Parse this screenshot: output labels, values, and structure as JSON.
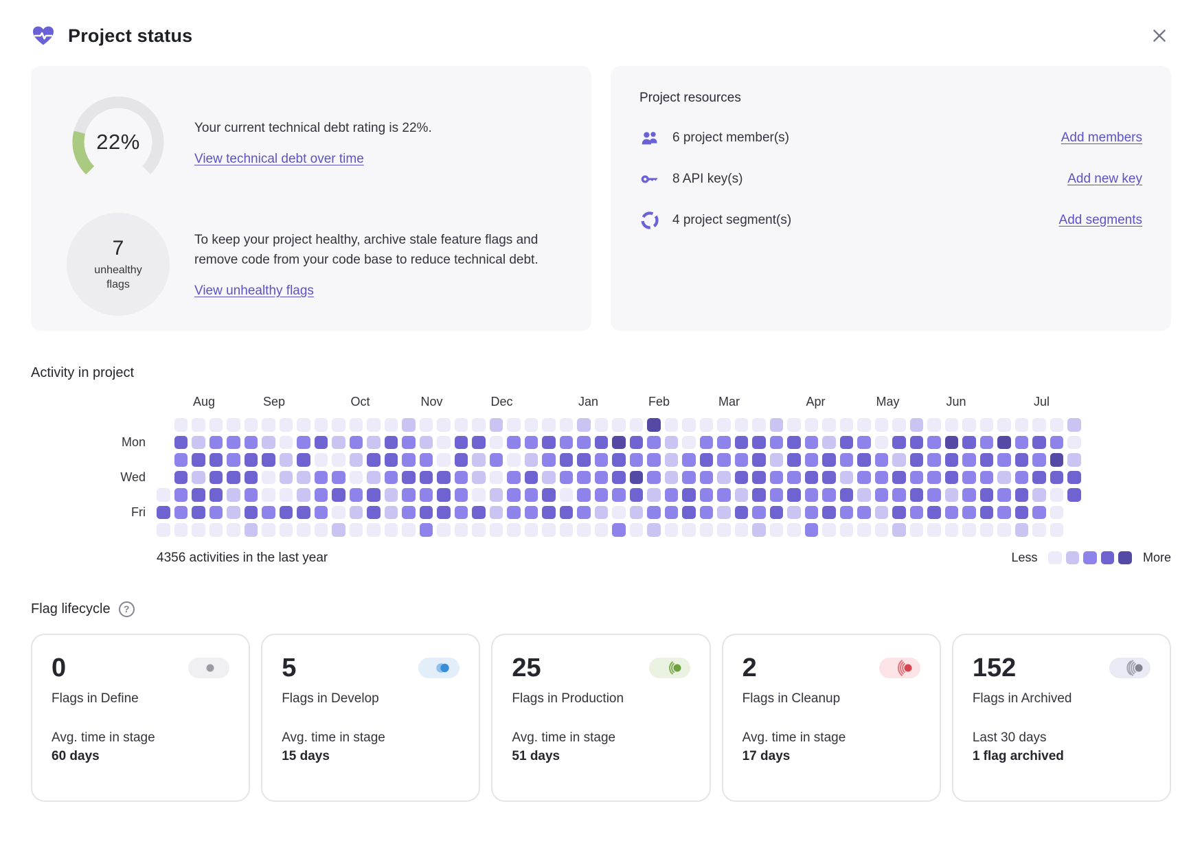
{
  "header": {
    "title": "Project status"
  },
  "technical_debt": {
    "gauge_value": "22%",
    "gauge_percent": 22,
    "rating_text": "Your current technical debt rating is 22%.",
    "debt_link": "View technical debt over time",
    "unhealthy_count": "7",
    "unhealthy_label": "unhealthy flags",
    "advice_text": "To keep your project healthy, archive stale feature flags and remove code from your code base to reduce technical debt.",
    "unhealthy_link": "View unhealthy flags",
    "gauge_color": "#a9ca80",
    "gauge_track_color": "#e5e4e9"
  },
  "resources": {
    "title": "Project resources",
    "rows": [
      {
        "icon": "members-icon",
        "label": "6 project member(s)",
        "link": "Add members"
      },
      {
        "icon": "key-icon",
        "label": "8 API key(s)",
        "link": "Add new key"
      },
      {
        "icon": "segments-icon",
        "label": "4 project segment(s)",
        "link": "Add segments"
      }
    ]
  },
  "activity": {
    "title": "Activity in project",
    "months": [
      {
        "label": "Aug",
        "col": 2
      },
      {
        "label": "Sep",
        "col": 6
      },
      {
        "label": "Oct",
        "col": 11
      },
      {
        "label": "Nov",
        "col": 15
      },
      {
        "label": "Dec",
        "col": 19
      },
      {
        "label": "Jan",
        "col": 24
      },
      {
        "label": "Feb",
        "col": 28
      },
      {
        "label": "Mar",
        "col": 32
      },
      {
        "label": "Apr",
        "col": 37
      },
      {
        "label": "May",
        "col": 41
      },
      {
        "label": "Jun",
        "col": 45
      },
      {
        "label": "Jul",
        "col": 50
      }
    ],
    "day_labels": [
      {
        "label": "Mon",
        "row": 1
      },
      {
        "label": "Wed",
        "row": 3
      },
      {
        "label": "Fri",
        "row": 5
      }
    ],
    "grid": [
      "x0000000000000100001000010004000000100000001000000001",
      "x3122210231213210330223223432102233232132033243242320",
      "x2332331300133220312012332322123223132323213232323241",
      "x3133301122012333210231222342122133223312232232212333",
      "02331200123231223201223022231232213232231223212323103",
      "3232132332013123323122332101223213231232213232232320x",
      "0000010000100002000000000020100000100200001000000100x"
    ],
    "level_colors": [
      "#edebfa",
      "#c9c4f2",
      "#8d83ea",
      "#6f63d2",
      "#5549a6"
    ],
    "summary": "4356 activities in the last year",
    "legend": {
      "less": "Less",
      "more": "More"
    }
  },
  "lifecycle": {
    "title": "Flag lifecycle",
    "cards": [
      {
        "count": "0",
        "stage": "Flags in Define",
        "metric_label": "Avg. time in stage",
        "metric_value": "60 days",
        "badge": "define-stage-icon"
      },
      {
        "count": "5",
        "stage": "Flags in Develop",
        "metric_label": "Avg. time in stage",
        "metric_value": "15 days",
        "badge": "develop-stage-icon"
      },
      {
        "count": "25",
        "stage": "Flags in Production",
        "metric_label": "Avg. time in stage",
        "metric_value": "51 days",
        "badge": "production-stage-icon"
      },
      {
        "count": "2",
        "stage": "Flags in Cleanup",
        "metric_label": "Avg. time in stage",
        "metric_value": "17 days",
        "badge": "cleanup-stage-icon"
      },
      {
        "count": "152",
        "stage": "Flags in Archived",
        "metric_label": "Last 30 days",
        "metric_value": "1 flag archived",
        "badge": "archived-stage-icon"
      }
    ]
  },
  "colors": {
    "accent_purple": "#6a61d8",
    "link_purple": "#5c52c7",
    "card_background": "#f7f7f9",
    "define_dot": "#9b9ba3",
    "develop_blue": "#3a8ed9",
    "production_green": "#6ba23e",
    "cleanup_red": "#d64550",
    "archived_gray": "#84848e"
  }
}
